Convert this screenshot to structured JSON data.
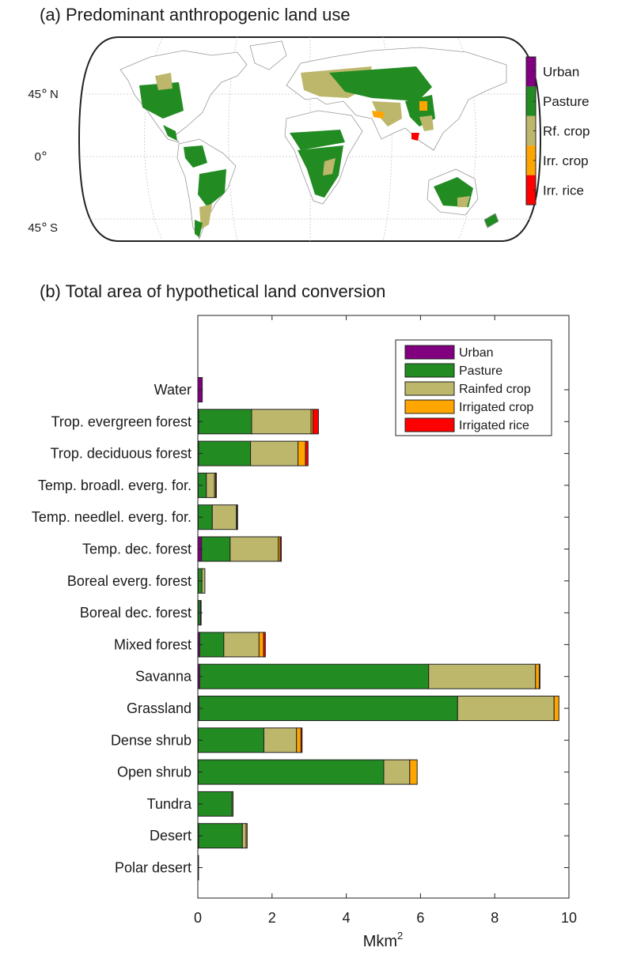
{
  "panel_a": {
    "title": "(a) Predominant anthropogenic land use",
    "lat_labels": [
      {
        "deg": "45",
        "hemi": "N"
      },
      {
        "deg": "0",
        "hemi": ""
      },
      {
        "deg": "45",
        "hemi": "S"
      }
    ],
    "colorbar": [
      {
        "label": "Urban",
        "color": "#800080"
      },
      {
        "label": "Pasture",
        "color": "#228B22"
      },
      {
        "label": "Rf. crop",
        "color": "#BDB76B"
      },
      {
        "label": "Irr. crop",
        "color": "#FFA500"
      },
      {
        "label": "Irr. rice",
        "color": "#FF0000"
      }
    ]
  },
  "panel_b": {
    "title": "(b) Total area of hypothetical land conversion"
  },
  "chart_data": {
    "type": "bar",
    "orientation": "horizontal",
    "stacked": true,
    "xlabel": "Mkm",
    "xlabel_superscript": "2",
    "xlim": [
      0,
      10
    ],
    "xticks": [
      0,
      2,
      4,
      6,
      8,
      10
    ],
    "legend_position": "top-right",
    "categories": [
      "Water",
      "Trop. evergreen forest",
      "Trop. deciduous forest",
      "Temp. broadl. everg. for.",
      "Temp. needlel. everg. for.",
      "Temp. dec. forest",
      "Boreal everg. forest",
      "Boreal dec. forest",
      "Mixed forest",
      "Savanna",
      "Grassland",
      "Dense shrub",
      "Open shrub",
      "Tundra",
      "Desert",
      "Polar desert"
    ],
    "series": [
      {
        "name": "Urban",
        "color": "#800080",
        "values": [
          0.12,
          0.02,
          0.02,
          0.01,
          0.01,
          0.1,
          0.01,
          0.01,
          0.05,
          0.05,
          0.03,
          0.01,
          0.01,
          0.0,
          0.02,
          0.0
        ]
      },
      {
        "name": "Pasture",
        "color": "#228B22",
        "values": [
          0.0,
          1.43,
          1.4,
          0.22,
          0.38,
          0.77,
          0.1,
          0.06,
          0.65,
          6.17,
          6.97,
          1.77,
          5.0,
          0.92,
          1.18,
          0.02
        ]
      },
      {
        "name": "Rainfed crop",
        "color": "#BDB76B",
        "values": [
          0.0,
          1.6,
          1.28,
          0.22,
          0.65,
          1.3,
          0.08,
          0.02,
          0.95,
          2.88,
          2.6,
          0.88,
          0.7,
          0.03,
          0.1,
          0.0
        ]
      },
      {
        "name": "Irrigated crop",
        "color": "#FFA500",
        "values": [
          0.0,
          0.05,
          0.2,
          0.03,
          0.02,
          0.05,
          0.0,
          0.0,
          0.12,
          0.1,
          0.13,
          0.12,
          0.2,
          0.0,
          0.03,
          0.0
        ]
      },
      {
        "name": "Irrigated rice",
        "color": "#FF0000",
        "values": [
          0.0,
          0.15,
          0.07,
          0.02,
          0.01,
          0.03,
          0.0,
          0.0,
          0.05,
          0.02,
          0.0,
          0.03,
          0.0,
          0.0,
          0.0,
          0.0
        ]
      }
    ]
  }
}
